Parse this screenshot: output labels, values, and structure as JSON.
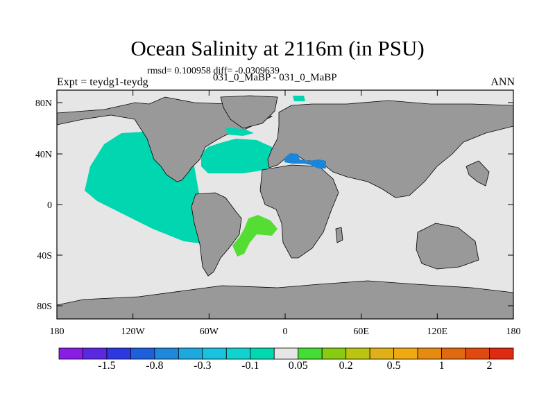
{
  "title": "Ocean Salinity at 2116m (in PSU)",
  "stats": "rmsd= 0.100958 diff= -0.0309639",
  "experiment": "Expt = teydg1-teydg",
  "comparison": "031_0_MaBP - 031_0_MaBP",
  "season": "ANN",
  "map": {
    "lat_ticks": [
      "80N",
      "40N",
      "0",
      "40S",
      "80S"
    ],
    "lon_ticks": [
      "180",
      "120W",
      "60W",
      "0",
      "60E",
      "120E",
      "180"
    ],
    "colors": {
      "land": "#999999",
      "no_change": "#e6e6e6",
      "pacific_anomaly": "#00d6b0",
      "atlantic_anomaly": "#00d6b0",
      "med_anomaly": "#1b85d8",
      "south_atlantic_anomaly": "#55dd33"
    }
  },
  "colorbar": {
    "labels": [
      "-1.5",
      "-0.8",
      "-0.3",
      "-0.1",
      "0.05",
      "0.2",
      "0.5",
      "1",
      "2"
    ],
    "colors": [
      "#8a1ce6",
      "#5a28e0",
      "#2d38e0",
      "#1e5fdc",
      "#1e88dc",
      "#1ea8e0",
      "#18c2e0",
      "#10d2d0",
      "#00d8b0",
      "#e6e6e6",
      "#44dd33",
      "#88cc11",
      "#bbc411",
      "#e0b018",
      "#eeaa10",
      "#e68a10",
      "#e06a10",
      "#e04a10",
      "#dd2a10"
    ]
  }
}
